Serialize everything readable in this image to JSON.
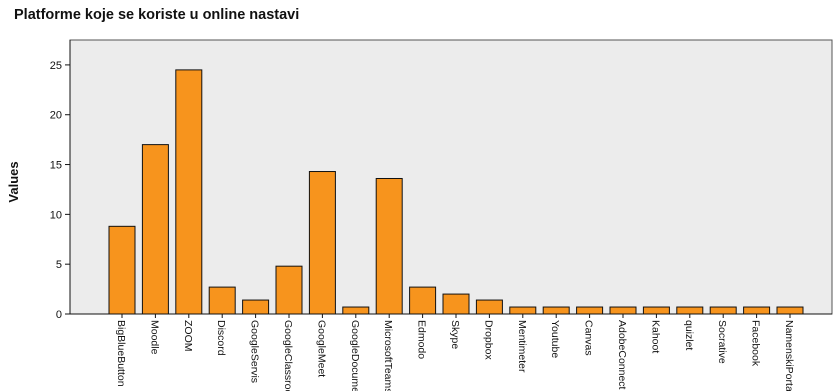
{
  "chart_data": {
    "type": "bar",
    "title": "Platforme koje se koriste u online nastavi",
    "ylabel": "Values",
    "xlabel": "",
    "ylim": [
      0,
      27.5
    ],
    "yticks": [
      0,
      5,
      10,
      15,
      20,
      25
    ],
    "grid": false,
    "legend": "none",
    "bar_color": "#f7941d",
    "plot_background": "#ececec",
    "categories": [
      "BigBlueButton",
      "Moodle",
      "ZOOM",
      "Discord",
      "GoogleServis",
      "GoogleClassroom",
      "GoogleMeet",
      "GoogleDocument",
      "MicrosoftTeams",
      "Edmodo",
      "Skype",
      "Dropbox",
      "Mentimeter",
      "Youtube",
      "Canvas",
      "AdobeConnect",
      "Kahoot",
      "quizlet",
      "Socrative",
      "Facebook",
      "NamenskiPortal"
    ],
    "values": [
      8.8,
      17.0,
      24.5,
      2.7,
      1.4,
      4.8,
      14.3,
      0.7,
      13.6,
      2.7,
      2.0,
      1.4,
      0.7,
      0.7,
      0.7,
      0.7,
      0.7,
      0.7,
      0.7,
      0.7,
      0.7
    ]
  }
}
